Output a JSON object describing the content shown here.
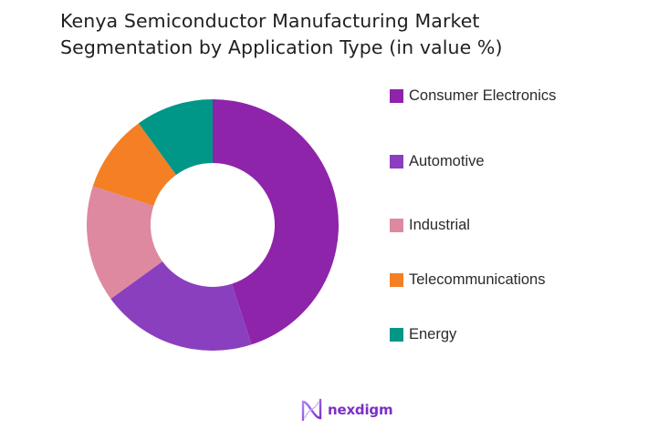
{
  "title": {
    "line1": "Kenya Semiconductor Manufacturing Market",
    "line2": "Segmentation by Application Type (in value %)"
  },
  "legend": {
    "items": [
      {
        "label": "Consumer Electronics",
        "color": "#8e24aa"
      },
      {
        "label": "Automotive",
        "color": "#8a3fbf"
      },
      {
        "label": "Industrial",
        "color": "#de89a0"
      },
      {
        "label": "Telecommunications",
        "color": "#f47f24"
      },
      {
        "label": "Energy",
        "color": "#009688"
      }
    ]
  },
  "brand": {
    "name": "nexdigm",
    "icon": "nexdigm-logo-icon"
  },
  "chart_data": {
    "type": "pie",
    "variant": "donut",
    "title": "Kenya Semiconductor Manufacturing Market Segmentation by Application Type (in value %)",
    "categories": [
      "Consumer Electronics",
      "Automotive",
      "Industrial",
      "Telecommunications",
      "Energy"
    ],
    "values": [
      45,
      20,
      15,
      10,
      10
    ],
    "colors": [
      "#8e24aa",
      "#8a3fbf",
      "#de89a0",
      "#f47f24",
      "#009688"
    ],
    "start_angle": "12 o'clock, clockwise",
    "legend_position": "right",
    "data_labels": false
  }
}
